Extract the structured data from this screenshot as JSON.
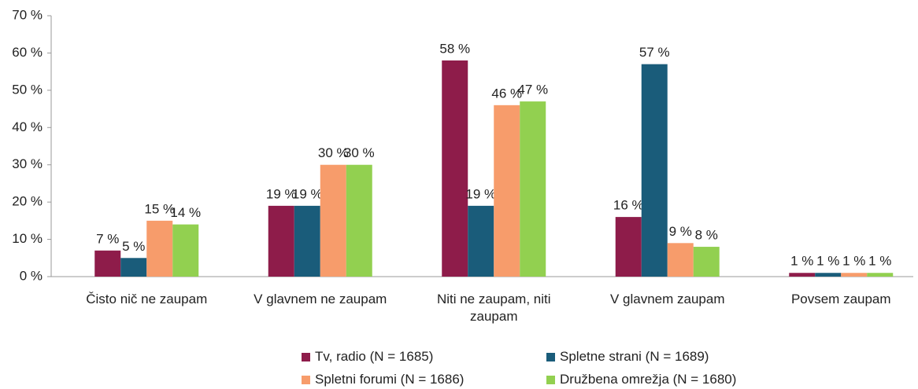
{
  "chart_data": {
    "type": "bar",
    "categories": [
      "Čisto nič ne zaupam",
      "V glavnem ne zaupam",
      "Niti ne zaupam, niti zaupam",
      "V glavnem zaupam",
      "Povsem zaupam"
    ],
    "series": [
      {
        "name": "Tv, radio (N = 1685)",
        "color": "#8e1c4a",
        "values": [
          7,
          19,
          58,
          16,
          1
        ],
        "value_labels": [
          "7 %",
          "19 %",
          "58 %",
          "16 %",
          "1 %"
        ]
      },
      {
        "name": "Spletne strani (N = 1689)",
        "color": "#1a5c7a",
        "values": [
          5,
          19,
          19,
          57,
          1
        ],
        "value_labels": [
          "5 %",
          "19 %",
          "19 %",
          "57 %",
          "1 %"
        ]
      },
      {
        "name": "Spletni forumi (N = 1686)",
        "color": "#f79c6b",
        "values": [
          15,
          30,
          46,
          9,
          1
        ],
        "value_labels": [
          "15 %",
          "30 %",
          "46 %",
          "9 %",
          "1 %"
        ]
      },
      {
        "name": "Družbena omrežja (N = 1680)",
        "color": "#92d050",
        "values": [
          14,
          30,
          47,
          8,
          1
        ],
        "value_labels": [
          "14 %",
          "30 %",
          "47 %",
          "8 %",
          "1 %"
        ]
      }
    ],
    "ylim": [
      0,
      70
    ],
    "yticks": [
      {
        "value": 0,
        "label": "0 %"
      },
      {
        "value": 10,
        "label": "10 %"
      },
      {
        "value": 20,
        "label": "20 %"
      },
      {
        "value": 30,
        "label": "30 %"
      },
      {
        "value": 40,
        "label": "40 %"
      },
      {
        "value": 50,
        "label": "50 %"
      },
      {
        "value": 60,
        "label": "60 %"
      },
      {
        "value": 70,
        "label": "70 %"
      }
    ],
    "grid": false
  }
}
